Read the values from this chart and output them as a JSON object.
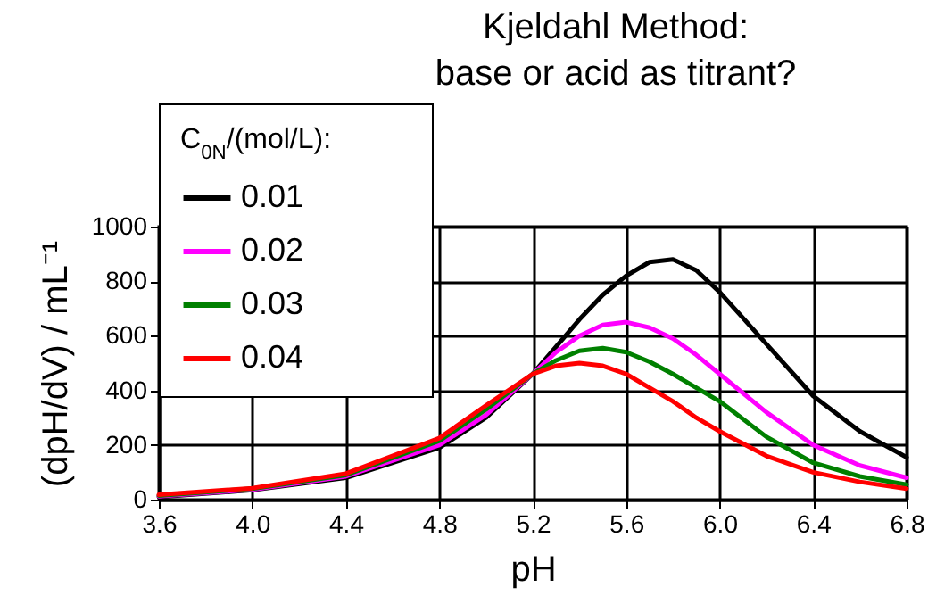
{
  "chart_data": {
    "type": "line",
    "title": "Kjeldahl Method:\nbase or acid as titrant?",
    "xlabel": "pH",
    "ylabel": "(dpH/dV) / mL⁻¹",
    "legend_title": "C$_{0N}$/(mol/L):",
    "x": [
      3.6,
      4.0,
      4.4,
      4.8,
      5.0,
      5.2,
      5.3,
      5.4,
      5.5,
      5.6,
      5.7,
      5.8,
      5.9,
      6.0,
      6.2,
      6.4,
      6.6,
      6.8
    ],
    "series": [
      {
        "name": "0.01",
        "color": "#000000",
        "values": [
          10,
          35,
          80,
          190,
          300,
          460,
          560,
          660,
          750,
          820,
          870,
          880,
          840,
          760,
          570,
          380,
          250,
          155
        ]
      },
      {
        "name": "0.02",
        "color": "#ff00ff",
        "values": [
          12,
          37,
          85,
          200,
          310,
          460,
          540,
          600,
          640,
          650,
          630,
          590,
          530,
          460,
          320,
          200,
          125,
          80
        ]
      },
      {
        "name": "0.03",
        "color": "#008000",
        "values": [
          15,
          40,
          90,
          215,
          330,
          460,
          510,
          545,
          555,
          540,
          505,
          460,
          410,
          360,
          230,
          135,
          85,
          55
        ]
      },
      {
        "name": "0.04",
        "color": "#ff0000",
        "values": [
          18,
          42,
          95,
          225,
          345,
          460,
          490,
          500,
          490,
          460,
          410,
          360,
          300,
          250,
          160,
          100,
          65,
          40
        ]
      }
    ],
    "xlim": [
      3.6,
      6.8
    ],
    "xticks": [
      3.6,
      {
        "value": 4,
        "label": "4.0"
      },
      4.4,
      4.8,
      5.2,
      5.6,
      {
        "value": 6,
        "label": "6.0"
      },
      6.4,
      6.8
    ],
    "ylim": [
      0,
      1000
    ],
    "yticks": [
      0,
      200,
      400,
      600,
      800,
      1000
    ],
    "grid": true,
    "legend": "top left",
    "line_style": "solid"
  }
}
